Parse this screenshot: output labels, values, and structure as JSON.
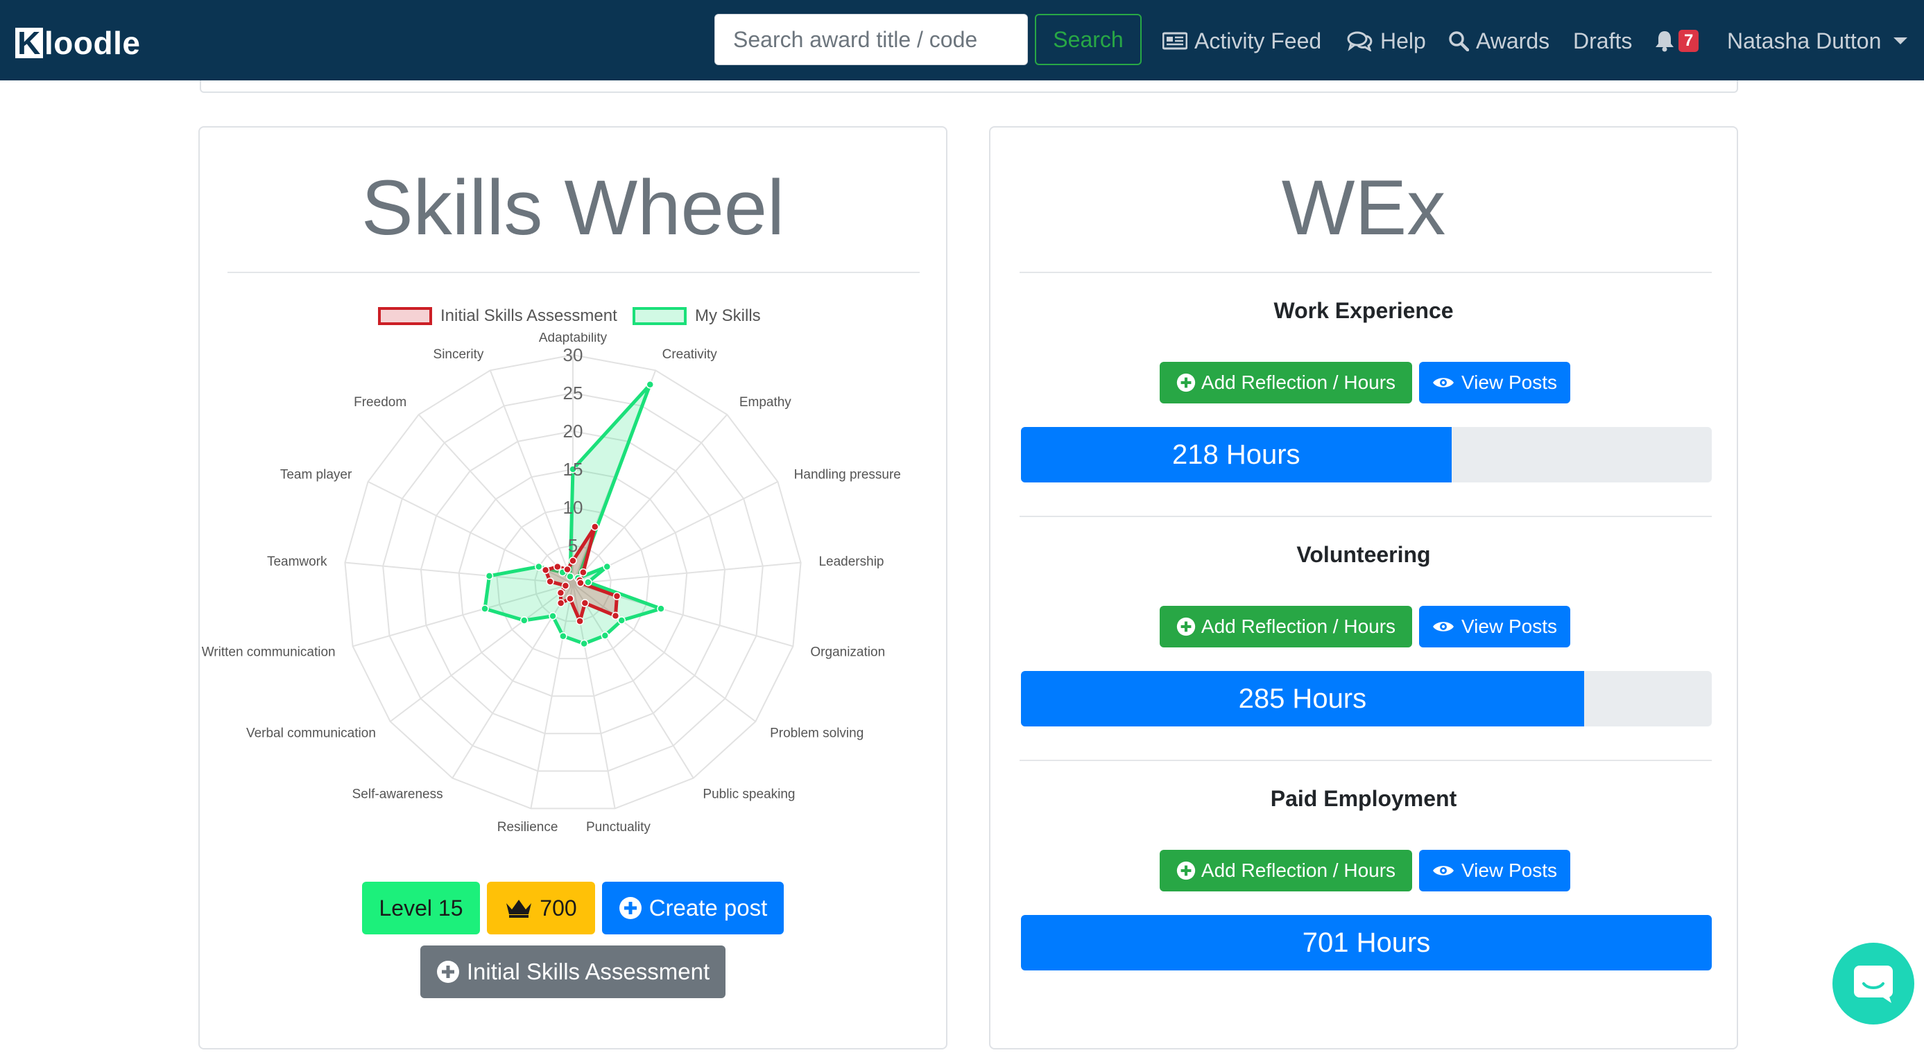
{
  "navbar": {
    "logo_first": "K",
    "logo_rest": "loodle",
    "search_placeholder": "Search award title / code",
    "search_label": "Search",
    "activity_feed": "Activity Feed",
    "help": "Help",
    "awards": "Awards",
    "drafts": "Drafts",
    "notification_count": "7",
    "user_name": "Natasha Dutton"
  },
  "skills_card": {
    "title": "Skills Wheel",
    "legend": [
      "Initial Skills Assessment",
      "My Skills"
    ],
    "level_label": "Level 15",
    "points": "700",
    "create_post": "Create post",
    "initial_assessment": "Initial Skills Assessment"
  },
  "chart_data": {
    "type": "radar",
    "categories": [
      "Adaptability",
      "Creativity",
      "Empathy",
      "Handling pressure",
      "Leadership",
      "Organization",
      "Problem solving",
      "Public speaking",
      "Punctuality",
      "Resilience",
      "Self-awareness",
      "Verbal communication",
      "Written communication",
      "Teamwork",
      "Team player",
      "Freedom",
      "Sincerity"
    ],
    "ticks": [
      5,
      10,
      15,
      20,
      25,
      30
    ],
    "range": [
      0,
      30
    ],
    "series": [
      {
        "name": "Initial Skills Assessment",
        "color": "#cc1f26",
        "values": [
          3,
          8,
          2,
          1,
          1,
          6,
          7,
          3,
          5,
          2,
          3,
          2,
          1,
          3,
          4,
          3,
          2
        ]
      },
      {
        "name": "My Skills",
        "color": "#1be07a",
        "values": [
          15,
          28,
          1,
          5,
          2,
          12,
          8,
          8,
          8,
          7,
          5,
          8,
          12,
          11,
          5,
          2,
          1
        ]
      }
    ]
  },
  "wex_card": {
    "title": "WEx",
    "sections": [
      {
        "title": "Work Experience",
        "add_label": "Add Reflection / Hours",
        "view_label": "View Posts",
        "hours_label": "218 Hours",
        "progress": 0.623
      },
      {
        "title": "Volunteering",
        "add_label": "Add Reflection / Hours",
        "view_label": "View Posts",
        "hours_label": "285 Hours",
        "progress": 0.815
      },
      {
        "title": "Paid Employment",
        "add_label": "Add Reflection / Hours",
        "view_label": "View Posts",
        "hours_label": "701 Hours",
        "progress": 1.0
      }
    ]
  },
  "colors": {
    "navbar": "#0b3452",
    "primary": "#007bff",
    "success": "#28a745",
    "level_badge": "#1cf07b",
    "points_badge": "#ffc107",
    "secondary": "#6c757d",
    "chat": "#1dd6b7"
  },
  "icons": [
    "newspaper-icon",
    "comments-icon",
    "search-icon",
    "bell-icon",
    "caret-down-icon",
    "crown-icon",
    "plus-circle-icon",
    "eye-icon",
    "chat-icon"
  ]
}
